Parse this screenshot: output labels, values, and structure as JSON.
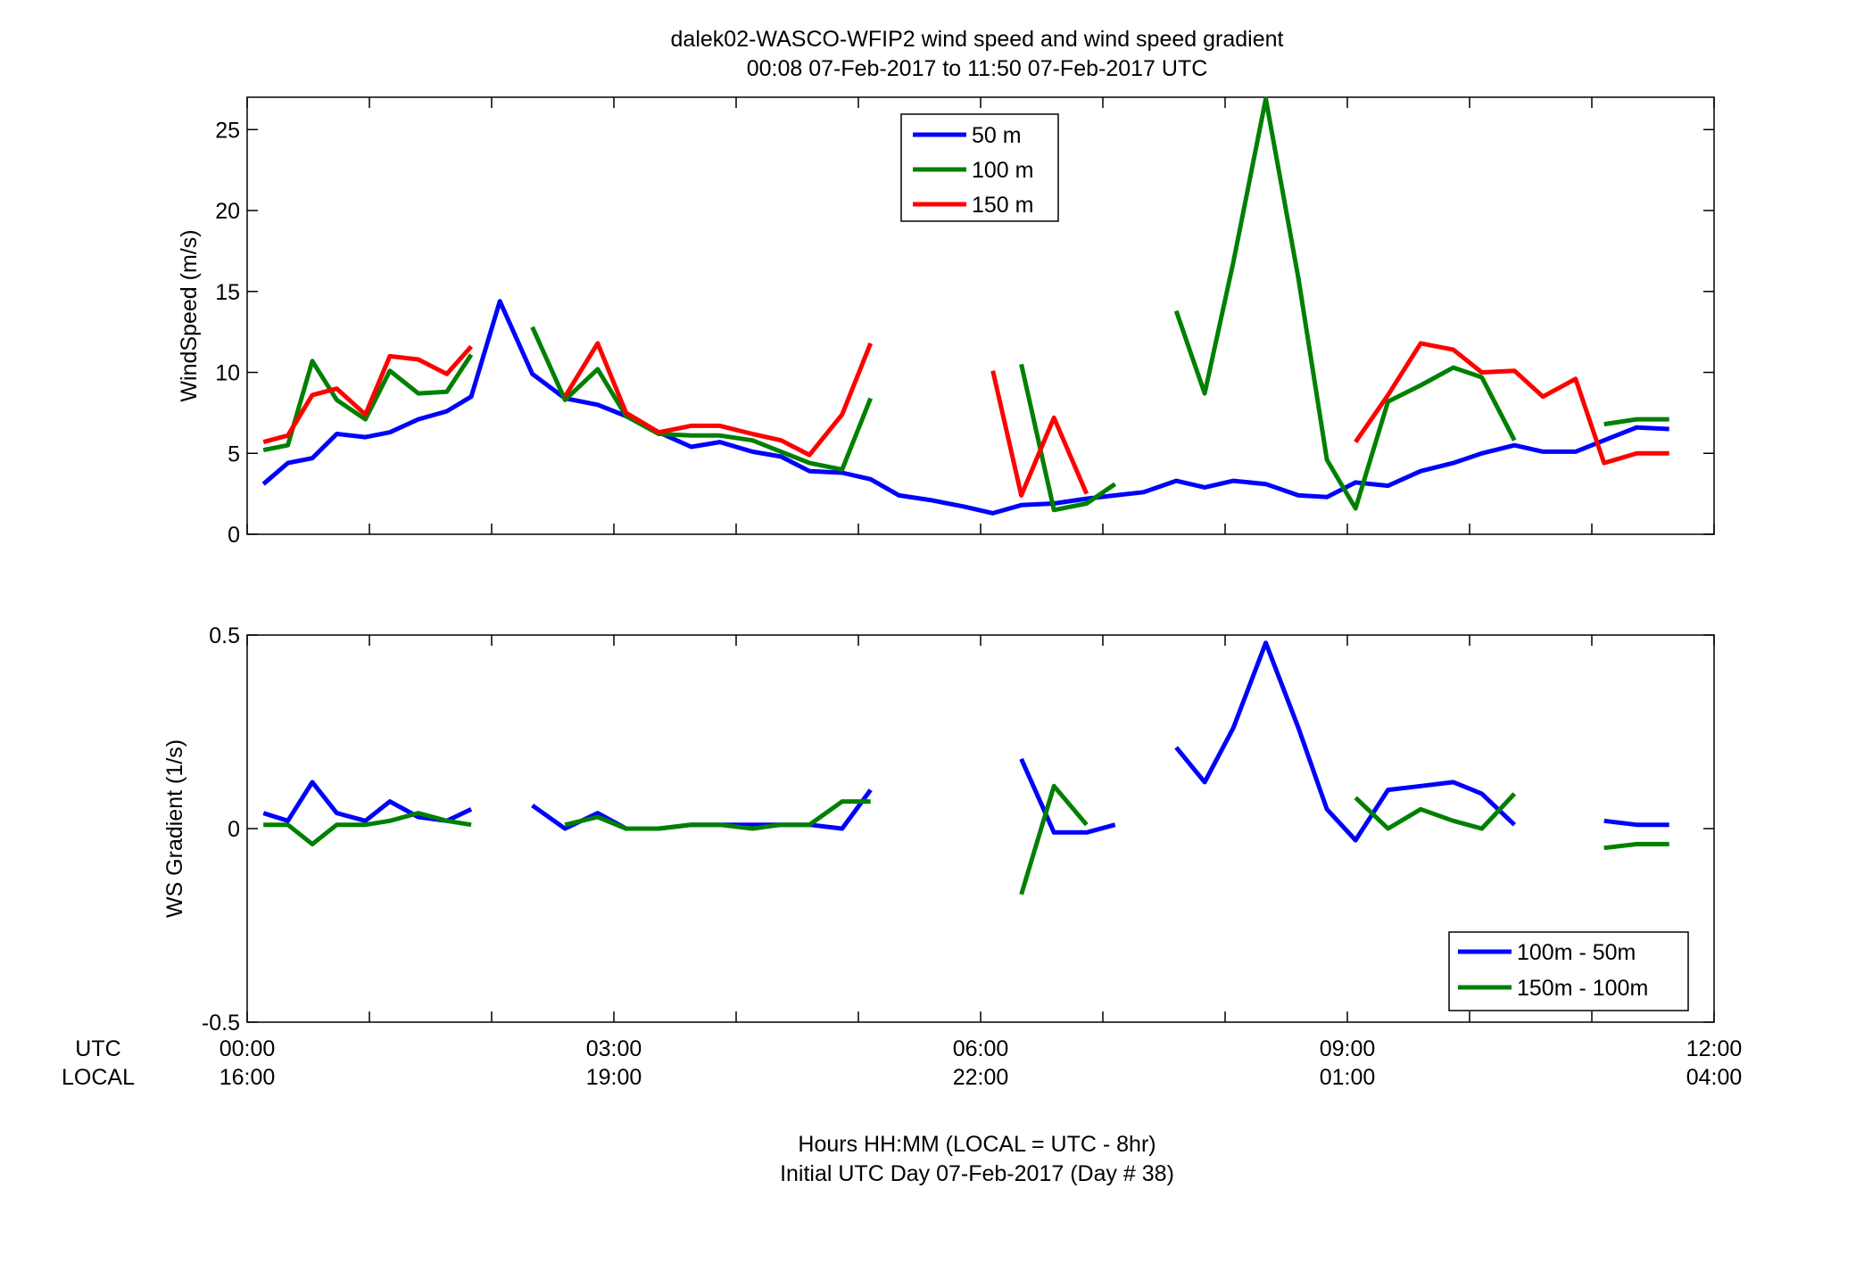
{
  "title_lines": [
    "dalek02-WASCO-WFIP2  wind speed and wind speed gradient",
    "00:08 07-Feb-2017 to 11:50 07-Feb-2017  UTC"
  ],
  "xaxis": {
    "row_labels": [
      "UTC",
      "LOCAL"
    ],
    "utc_ticks": [
      "00:00",
      "03:00",
      "06:00",
      "09:00",
      "12:00"
    ],
    "local_ticks": [
      "16:00",
      "19:00",
      "22:00",
      "01:00",
      "04:00"
    ],
    "label_lines": [
      "Hours HH:MM  (LOCAL = UTC - 8hr)",
      "Initial UTC Day 07-Feb-2017 (Day # 38)"
    ],
    "range_hours": [
      0,
      12
    ]
  },
  "chart_data": [
    {
      "type": "line",
      "ylabel": "WindSpeed (m/s)",
      "ylim": [
        0,
        27
      ],
      "yticks": [
        0,
        5,
        10,
        15,
        20,
        25
      ],
      "legend_position": "top-center",
      "x_hours": [
        0.133,
        0.333,
        0.533,
        0.733,
        0.967,
        1.167,
        1.4,
        1.633,
        1.833,
        2.067,
        2.333,
        2.6,
        2.867,
        3.1,
        3.367,
        3.633,
        3.867,
        4.133,
        4.367,
        4.6,
        4.867,
        5.1,
        5.333,
        5.6,
        5.867,
        6.1,
        6.333,
        6.6,
        6.867,
        7.1,
        7.333,
        7.6,
        7.833,
        8.067,
        8.333,
        8.6,
        8.833,
        9.067,
        9.333,
        9.6,
        9.867,
        10.1,
        10.367,
        10.6,
        10.867,
        11.1,
        11.367,
        11.633,
        11.867,
        12.0
      ],
      "series": [
        {
          "name": "50 m",
          "color": "#0000ff",
          "values": [
            3.1,
            4.4,
            4.7,
            6.2,
            6.0,
            6.3,
            7.1,
            7.6,
            8.5,
            14.4,
            9.9,
            8.4,
            8.0,
            7.3,
            6.3,
            5.4,
            5.7,
            5.1,
            4.8,
            3.9,
            3.8,
            3.4,
            2.4,
            2.1,
            1.7,
            1.3,
            1.8,
            1.9,
            2.2,
            2.4,
            2.6,
            3.3,
            2.9,
            3.3,
            3.1,
            2.4,
            2.3,
            3.2,
            3.0,
            3.9,
            4.4,
            5.0,
            5.5,
            5.1,
            5.1,
            5.8,
            6.6,
            6.5,
            null,
            null
          ]
        },
        {
          "name": "100 m",
          "color": "#008000",
          "values": [
            5.2,
            5.5,
            10.7,
            8.3,
            7.1,
            10.1,
            8.7,
            8.8,
            11.1,
            null,
            12.8,
            8.3,
            10.2,
            7.3,
            6.2,
            6.1,
            6.1,
            5.8,
            5.1,
            4.4,
            4.0,
            8.4,
            null,
            null,
            null,
            null,
            10.5,
            1.5,
            1.9,
            3.1,
            null,
            13.8,
            8.7,
            16.8,
            26.9,
            15.8,
            4.6,
            1.6,
            8.2,
            9.2,
            10.3,
            9.7,
            5.8,
            null,
            null,
            6.8,
            7.1,
            7.1,
            null,
            null
          ]
        },
        {
          "name": "150 m",
          "color": "#ff0000",
          "values": [
            5.7,
            6.1,
            8.6,
            9.0,
            7.4,
            11.0,
            10.8,
            9.9,
            11.6,
            null,
            null,
            8.5,
            11.8,
            7.5,
            6.3,
            6.7,
            6.7,
            6.2,
            5.8,
            4.9,
            7.4,
            11.8,
            null,
            null,
            null,
            10.1,
            2.4,
            7.2,
            2.5,
            null,
            null,
            null,
            null,
            null,
            null,
            null,
            null,
            5.7,
            8.6,
            11.8,
            11.4,
            10.0,
            10.1,
            8.5,
            9.6,
            4.4,
            5.0,
            5.0,
            null,
            null
          ]
        }
      ]
    },
    {
      "type": "line",
      "ylabel": "WS Gradient (1/s)",
      "ylim": [
        -0.5,
        0.5
      ],
      "yticks": [
        "-0.5",
        "0",
        "0.5"
      ],
      "legend_position": "bottom-right",
      "x_hours": [
        0.133,
        0.333,
        0.533,
        0.733,
        0.967,
        1.167,
        1.4,
        1.633,
        1.833,
        2.067,
        2.333,
        2.6,
        2.867,
        3.1,
        3.367,
        3.633,
        3.867,
        4.133,
        4.367,
        4.6,
        4.867,
        5.1,
        5.333,
        5.6,
        5.867,
        6.1,
        6.333,
        6.6,
        6.867,
        7.1,
        7.333,
        7.6,
        7.833,
        8.067,
        8.333,
        8.6,
        8.833,
        9.067,
        9.333,
        9.6,
        9.867,
        10.1,
        10.367,
        10.6,
        10.867,
        11.1,
        11.367,
        11.633,
        11.867,
        12.0
      ],
      "series": [
        {
          "name": "100m - 50m",
          "color": "#0000ff",
          "values": [
            0.04,
            0.02,
            0.12,
            0.04,
            0.02,
            0.07,
            0.03,
            0.02,
            0.05,
            null,
            0.06,
            0.0,
            0.04,
            0.0,
            0.0,
            0.01,
            0.01,
            0.01,
            0.01,
            0.01,
            0.0,
            0.1,
            null,
            null,
            null,
            null,
            0.18,
            -0.01,
            -0.01,
            0.01,
            null,
            0.21,
            0.12,
            0.26,
            0.48,
            0.26,
            0.05,
            -0.03,
            0.1,
            0.11,
            0.12,
            0.09,
            0.01,
            null,
            null,
            0.02,
            0.01,
            0.01,
            null,
            null
          ]
        },
        {
          "name": "150m - 100m",
          "color": "#008000",
          "values": [
            0.01,
            0.01,
            -0.04,
            0.01,
            0.01,
            0.02,
            0.04,
            0.02,
            0.01,
            null,
            null,
            0.01,
            0.03,
            0.0,
            0.0,
            0.01,
            0.01,
            0.0,
            0.01,
            0.01,
            0.07,
            0.07,
            null,
            null,
            null,
            null,
            -0.17,
            0.11,
            0.01,
            null,
            null,
            null,
            null,
            null,
            null,
            null,
            null,
            0.08,
            0.0,
            0.05,
            0.02,
            0.0,
            0.09,
            null,
            null,
            -0.05,
            -0.04,
            -0.04,
            null,
            null
          ]
        }
      ]
    }
  ]
}
